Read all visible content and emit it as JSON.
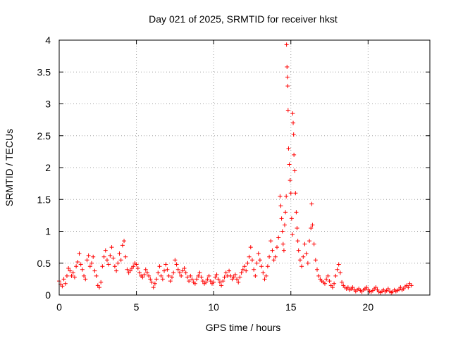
{
  "chart_data": {
    "type": "scatter",
    "title": "Day 021 of 2025, SRMTID for receiver hkst",
    "xlabel": "GPS time / hours",
    "ylabel": "SRMTID / TECUs",
    "xlim": [
      0,
      24
    ],
    "ylim": [
      0,
      4
    ],
    "xticks": [
      0,
      5,
      10,
      15,
      20
    ],
    "yticks": [
      0,
      0.5,
      1,
      1.5,
      2,
      2.5,
      3,
      3.5,
      4
    ],
    "xtick_labels": [
      "0",
      "5",
      "10",
      "15",
      "20"
    ],
    "ytick_labels": [
      "0",
      "0.5",
      "1",
      "1.5",
      "2",
      "2.5",
      "3",
      "3.5",
      "4"
    ],
    "grid": true,
    "marker": "+",
    "color": "#ff0000",
    "series": [
      {
        "name": "SRMTID",
        "points": [
          [
            0.0,
            0.22
          ],
          [
            0.1,
            0.17
          ],
          [
            0.2,
            0.14
          ],
          [
            0.3,
            0.25
          ],
          [
            0.4,
            0.18
          ],
          [
            0.5,
            0.3
          ],
          [
            0.6,
            0.42
          ],
          [
            0.7,
            0.38
          ],
          [
            0.8,
            0.3
          ],
          [
            0.9,
            0.35
          ],
          [
            1.0,
            0.28
          ],
          [
            1.1,
            0.45
          ],
          [
            1.2,
            0.52
          ],
          [
            1.3,
            0.65
          ],
          [
            1.4,
            0.48
          ],
          [
            1.5,
            0.4
          ],
          [
            1.6,
            0.3
          ],
          [
            1.7,
            0.25
          ],
          [
            1.8,
            0.55
          ],
          [
            1.9,
            0.62
          ],
          [
            2.0,
            0.45
          ],
          [
            2.1,
            0.5
          ],
          [
            2.2,
            0.6
          ],
          [
            2.3,
            0.38
          ],
          [
            2.4,
            0.3
          ],
          [
            2.5,
            0.15
          ],
          [
            2.6,
            0.12
          ],
          [
            2.7,
            0.2
          ],
          [
            2.8,
            0.45
          ],
          [
            2.9,
            0.6
          ],
          [
            3.0,
            0.7
          ],
          [
            3.1,
            0.55
          ],
          [
            3.2,
            0.48
          ],
          [
            3.3,
            0.62
          ],
          [
            3.4,
            0.75
          ],
          [
            3.5,
            0.58
          ],
          [
            3.6,
            0.45
          ],
          [
            3.7,
            0.38
          ],
          [
            3.8,
            0.5
          ],
          [
            3.9,
            0.65
          ],
          [
            4.0,
            0.55
          ],
          [
            4.1,
            0.78
          ],
          [
            4.2,
            0.85
          ],
          [
            4.3,
            0.6
          ],
          [
            4.4,
            0.4
          ],
          [
            4.5,
            0.35
          ],
          [
            4.6,
            0.38
          ],
          [
            4.7,
            0.42
          ],
          [
            4.8,
            0.45
          ],
          [
            4.9,
            0.5
          ],
          [
            5.0,
            0.48
          ],
          [
            5.1,
            0.42
          ],
          [
            5.2,
            0.35
          ],
          [
            5.3,
            0.3
          ],
          [
            5.4,
            0.28
          ],
          [
            5.5,
            0.32
          ],
          [
            5.6,
            0.4
          ],
          [
            5.7,
            0.35
          ],
          [
            5.8,
            0.3
          ],
          [
            5.9,
            0.25
          ],
          [
            6.0,
            0.2
          ],
          [
            6.1,
            0.12
          ],
          [
            6.2,
            0.18
          ],
          [
            6.3,
            0.25
          ],
          [
            6.4,
            0.35
          ],
          [
            6.5,
            0.45
          ],
          [
            6.6,
            0.3
          ],
          [
            6.7,
            0.25
          ],
          [
            6.8,
            0.38
          ],
          [
            6.9,
            0.48
          ],
          [
            7.0,
            0.4
          ],
          [
            7.1,
            0.3
          ],
          [
            7.2,
            0.22
          ],
          [
            7.3,
            0.28
          ],
          [
            7.4,
            0.35
          ],
          [
            7.5,
            0.55
          ],
          [
            7.6,
            0.48
          ],
          [
            7.7,
            0.4
          ],
          [
            7.8,
            0.35
          ],
          [
            7.9,
            0.3
          ],
          [
            8.0,
            0.38
          ],
          [
            8.1,
            0.42
          ],
          [
            8.2,
            0.35
          ],
          [
            8.3,
            0.28
          ],
          [
            8.4,
            0.22
          ],
          [
            8.5,
            0.3
          ],
          [
            8.6,
            0.25
          ],
          [
            8.7,
            0.2
          ],
          [
            8.8,
            0.18
          ],
          [
            8.9,
            0.25
          ],
          [
            9.0,
            0.3
          ],
          [
            9.1,
            0.35
          ],
          [
            9.2,
            0.28
          ],
          [
            9.3,
            0.22
          ],
          [
            9.4,
            0.18
          ],
          [
            9.5,
            0.2
          ],
          [
            9.6,
            0.25
          ],
          [
            9.7,
            0.3
          ],
          [
            9.8,
            0.22
          ],
          [
            9.9,
            0.18
          ],
          [
            10.0,
            0.2
          ],
          [
            10.1,
            0.28
          ],
          [
            10.2,
            0.32
          ],
          [
            10.3,
            0.25
          ],
          [
            10.4,
            0.2
          ],
          [
            10.5,
            0.15
          ],
          [
            10.6,
            0.22
          ],
          [
            10.7,
            0.28
          ],
          [
            10.8,
            0.35
          ],
          [
            10.9,
            0.3
          ],
          [
            11.0,
            0.38
          ],
          [
            11.1,
            0.3
          ],
          [
            11.2,
            0.25
          ],
          [
            11.3,
            0.28
          ],
          [
            11.4,
            0.32
          ],
          [
            11.5,
            0.25
          ],
          [
            11.6,
            0.2
          ],
          [
            11.7,
            0.28
          ],
          [
            11.8,
            0.35
          ],
          [
            11.9,
            0.4
          ],
          [
            12.0,
            0.45
          ],
          [
            12.1,
            0.38
          ],
          [
            12.2,
            0.5
          ],
          [
            12.3,
            0.6
          ],
          [
            12.4,
            0.75
          ],
          [
            12.5,
            0.55
          ],
          [
            12.6,
            0.4
          ],
          [
            12.7,
            0.3
          ],
          [
            12.8,
            0.5
          ],
          [
            12.9,
            0.65
          ],
          [
            13.0,
            0.55
          ],
          [
            13.1,
            0.45
          ],
          [
            13.2,
            0.35
          ],
          [
            13.3,
            0.25
          ],
          [
            13.4,
            0.3
          ],
          [
            13.5,
            0.45
          ],
          [
            13.6,
            0.6
          ],
          [
            13.7,
            0.85
          ],
          [
            13.8,
            0.7
          ],
          [
            13.9,
            0.55
          ],
          [
            14.0,
            0.6
          ],
          [
            14.1,
            0.75
          ],
          [
            14.2,
            0.9
          ],
          [
            14.3,
            1.55
          ],
          [
            14.35,
            1.4
          ],
          [
            14.4,
            1.2
          ],
          [
            14.45,
            1.0
          ],
          [
            14.5,
            0.8
          ],
          [
            14.55,
            0.7
          ],
          [
            14.6,
            1.1
          ],
          [
            14.65,
            1.3
          ],
          [
            14.7,
            1.55
          ],
          [
            14.72,
            3.93
          ],
          [
            14.75,
            3.58
          ],
          [
            14.78,
            3.42
          ],
          [
            14.8,
            3.28
          ],
          [
            14.82,
            2.9
          ],
          [
            14.85,
            2.3
          ],
          [
            14.9,
            2.05
          ],
          [
            14.95,
            1.8
          ],
          [
            15.0,
            1.6
          ],
          [
            15.05,
            1.2
          ],
          [
            15.1,
            0.95
          ],
          [
            15.12,
            2.85
          ],
          [
            15.15,
            2.7
          ],
          [
            15.18,
            2.52
          ],
          [
            15.2,
            2.2
          ],
          [
            15.25,
            1.95
          ],
          [
            15.3,
            1.6
          ],
          [
            15.35,
            1.3
          ],
          [
            15.4,
            1.05
          ],
          [
            15.45,
            0.85
          ],
          [
            15.5,
            0.7
          ],
          [
            15.6,
            0.55
          ],
          [
            15.7,
            0.45
          ],
          [
            15.8,
            0.6
          ],
          [
            15.9,
            0.8
          ],
          [
            16.0,
            0.65
          ],
          [
            16.1,
            0.5
          ],
          [
            16.2,
            0.85
          ],
          [
            16.3,
            1.05
          ],
          [
            16.35,
            1.43
          ],
          [
            16.4,
            1.1
          ],
          [
            16.5,
            0.8
          ],
          [
            16.6,
            0.55
          ],
          [
            16.7,
            0.4
          ],
          [
            16.8,
            0.3
          ],
          [
            16.9,
            0.25
          ],
          [
            17.0,
            0.22
          ],
          [
            17.1,
            0.2
          ],
          [
            17.2,
            0.18
          ],
          [
            17.3,
            0.25
          ],
          [
            17.4,
            0.3
          ],
          [
            17.5,
            0.22
          ],
          [
            17.6,
            0.15
          ],
          [
            17.7,
            0.12
          ],
          [
            17.8,
            0.18
          ],
          [
            17.9,
            0.3
          ],
          [
            18.0,
            0.4
          ],
          [
            18.1,
            0.48
          ],
          [
            18.2,
            0.35
          ],
          [
            18.3,
            0.2
          ],
          [
            18.4,
            0.15
          ],
          [
            18.5,
            0.12
          ],
          [
            18.6,
            0.1
          ],
          [
            18.7,
            0.12
          ],
          [
            18.8,
            0.08
          ],
          [
            18.9,
            0.1
          ],
          [
            19.0,
            0.12
          ],
          [
            19.1,
            0.08
          ],
          [
            19.2,
            0.06
          ],
          [
            19.3,
            0.08
          ],
          [
            19.4,
            0.1
          ],
          [
            19.5,
            0.07
          ],
          [
            19.6,
            0.05
          ],
          [
            19.7,
            0.08
          ],
          [
            19.8,
            0.1
          ],
          [
            19.9,
            0.12
          ],
          [
            20.0,
            0.08
          ],
          [
            20.1,
            0.06
          ],
          [
            20.2,
            0.05
          ],
          [
            20.3,
            0.07
          ],
          [
            20.4,
            0.1
          ],
          [
            20.5,
            0.12
          ],
          [
            20.6,
            0.08
          ],
          [
            20.7,
            0.05
          ],
          [
            20.8,
            0.04
          ],
          [
            20.9,
            0.06
          ],
          [
            21.0,
            0.08
          ],
          [
            21.1,
            0.05
          ],
          [
            21.2,
            0.07
          ],
          [
            21.3,
            0.1
          ],
          [
            21.4,
            0.06
          ],
          [
            21.5,
            0.04
          ],
          [
            21.6,
            0.05
          ],
          [
            21.7,
            0.08
          ],
          [
            21.8,
            0.06
          ],
          [
            21.9,
            0.07
          ],
          [
            22.0,
            0.09
          ],
          [
            22.1,
            0.12
          ],
          [
            22.2,
            0.08
          ],
          [
            22.3,
            0.1
          ],
          [
            22.4,
            0.13
          ],
          [
            22.5,
            0.15
          ],
          [
            22.6,
            0.12
          ],
          [
            22.7,
            0.18
          ],
          [
            22.8,
            0.15
          ]
        ]
      }
    ]
  }
}
